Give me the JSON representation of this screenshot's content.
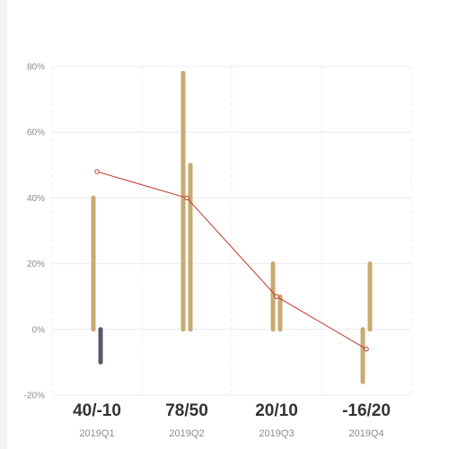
{
  "chart_data": {
    "type": "bar",
    "categories": [
      "2019Q1",
      "2019Q2",
      "2019Q3",
      "2019Q4"
    ],
    "category_headlines": [
      "40/-10",
      "78/50",
      "20/10",
      "-16/20"
    ],
    "series": [
      {
        "values": [
          40,
          78,
          20,
          -16
        ],
        "color": "#c8ab72"
      },
      {
        "values": [
          -10,
          50,
          10,
          20
        ],
        "color": "#c8ab72",
        "negative_color": "#555a69"
      },
      {
        "values": [
          48,
          40,
          10,
          -6
        ],
        "type": "line",
        "color": "#c0392b"
      }
    ],
    "y_ticks": [
      "80%",
      "60%",
      "40%",
      "20%",
      "0%",
      "-20%"
    ],
    "ylim": [
      -20,
      80
    ],
    "grid": true
  }
}
